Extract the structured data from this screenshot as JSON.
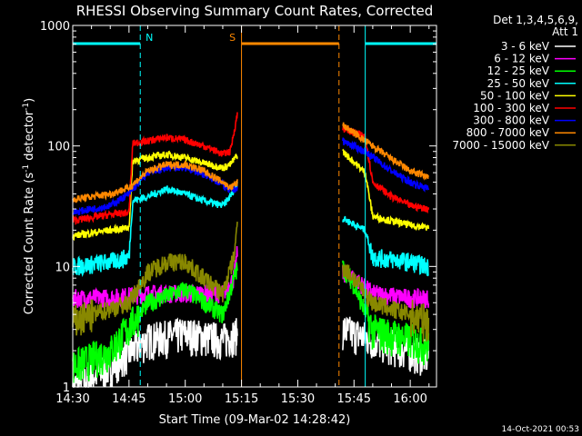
{
  "chart_data": {
    "type": "line",
    "title": "RHESSI Observing Summary Count Rates, Corrected",
    "xlabel": "Start Time (09-Mar-02 14:28:42)",
    "ylabel": "Corrected Count Rate (s",
    "ylabel_sup1": "-1",
    "ylabel_mid": " detector",
    "ylabel_sup2": "-1",
    "ylabel_end": ")",
    "yscale": "log",
    "ylim": [
      1,
      1000
    ],
    "xlim": [
      "14:30",
      "16:07"
    ],
    "xticks": [
      "14:30",
      "14:45",
      "15:00",
      "15:15",
      "15:30",
      "15:45",
      "16:00"
    ],
    "yticks": [
      "1",
      "10",
      "100",
      "1000"
    ],
    "timestamp": "14-Oct-2021 00:53",
    "legend": {
      "placement": "right",
      "header1": "Det 1,3,4,5,6,9,",
      "header2": "Att 1"
    },
    "flags": [
      {
        "label": "N",
        "color": "#00ffff",
        "start": "14:30",
        "end": "14:48",
        "end_line": true
      },
      {
        "label": "S",
        "color": "#ff8800",
        "start": "15:15",
        "end": "15:41",
        "end_line": true
      },
      {
        "label": "",
        "color": "#00ffff",
        "start": "15:48",
        "end": "16:07",
        "end_line": true
      }
    ],
    "gaps": [
      [
        "15:15",
        "15:42"
      ]
    ],
    "series": [
      {
        "name": "3 - 6 keV",
        "color": "#ffffff",
        "points": [
          [
            "14:30",
            1
          ],
          [
            "14:40",
            1.5
          ],
          [
            "14:50",
            2.5
          ],
          [
            "15:00",
            2.8
          ],
          [
            "15:10",
            2.5
          ],
          [
            "15:14",
            2.8
          ],
          [
            "15:42",
            3
          ],
          [
            "15:50",
            2.5
          ],
          [
            "16:00",
            2
          ],
          [
            "16:05",
            1.8
          ]
        ]
      },
      {
        "name": "6 - 12 keV",
        "color": "#ff00ff",
        "points": [
          [
            "14:30",
            5.5
          ],
          [
            "14:40",
            5.5
          ],
          [
            "14:50",
            6
          ],
          [
            "15:00",
            6
          ],
          [
            "15:10",
            6
          ],
          [
            "15:13",
            8
          ],
          [
            "15:14",
            14
          ],
          [
            "15:42",
            9
          ],
          [
            "15:45",
            8
          ],
          [
            "15:50",
            6
          ],
          [
            "16:00",
            5.5
          ],
          [
            "16:05",
            5.5
          ]
        ]
      },
      {
        "name": "12 - 25 keV",
        "color": "#00ff00",
        "points": [
          [
            "14:30",
            1.5
          ],
          [
            "14:40",
            2
          ],
          [
            "14:50",
            5
          ],
          [
            "15:00",
            6.5
          ],
          [
            "15:10",
            4
          ],
          [
            "15:14",
            10
          ],
          [
            "15:42",
            10
          ],
          [
            "15:45",
            7
          ],
          [
            "15:50",
            3
          ],
          [
            "16:00",
            2.5
          ],
          [
            "16:05",
            2.2
          ]
        ]
      },
      {
        "name": "25 - 50 keV",
        "color": "#00ffff",
        "points": [
          [
            "14:30",
            10
          ],
          [
            "14:40",
            11
          ],
          [
            "14:45",
            12
          ],
          [
            "14:46",
            35
          ],
          [
            "14:50",
            38
          ],
          [
            "14:55",
            44
          ],
          [
            "15:00",
            40
          ],
          [
            "15:05",
            35
          ],
          [
            "15:10",
            32
          ],
          [
            "15:12",
            38
          ],
          [
            "15:14",
            50
          ],
          [
            "15:42",
            25
          ],
          [
            "15:48",
            20
          ],
          [
            "15:50",
            12
          ],
          [
            "16:00",
            11
          ],
          [
            "16:05",
            10
          ]
        ]
      },
      {
        "name": "50 - 100 keV",
        "color": "#ffff00",
        "points": [
          [
            "14:30",
            18
          ],
          [
            "14:40",
            20
          ],
          [
            "14:45",
            21
          ],
          [
            "14:46",
            75
          ],
          [
            "14:50",
            80
          ],
          [
            "14:55",
            85
          ],
          [
            "15:00",
            80
          ],
          [
            "15:05",
            72
          ],
          [
            "15:10",
            66
          ],
          [
            "15:12",
            70
          ],
          [
            "15:14",
            85
          ],
          [
            "15:42",
            90
          ],
          [
            "15:48",
            60
          ],
          [
            "15:50",
            26
          ],
          [
            "16:00",
            22
          ],
          [
            "16:05",
            21
          ]
        ]
      },
      {
        "name": "100 - 300 keV",
        "color": "#ff0000",
        "points": [
          [
            "14:30",
            24
          ],
          [
            "14:40",
            27
          ],
          [
            "14:45",
            28
          ],
          [
            "14:46",
            105
          ],
          [
            "14:50",
            110
          ],
          [
            "14:55",
            118
          ],
          [
            "15:00",
            112
          ],
          [
            "15:05",
            100
          ],
          [
            "15:10",
            86
          ],
          [
            "15:12",
            90
          ],
          [
            "15:14",
            190
          ],
          [
            "15:42",
            140
          ],
          [
            "15:48",
            120
          ],
          [
            "15:50",
            50
          ],
          [
            "15:55",
            38
          ],
          [
            "16:00",
            32
          ],
          [
            "16:05",
            30
          ]
        ]
      },
      {
        "name": "300 - 800 keV",
        "color": "#0000ff",
        "points": [
          [
            "14:30",
            28
          ],
          [
            "14:40",
            32
          ],
          [
            "14:45",
            40
          ],
          [
            "14:50",
            60
          ],
          [
            "14:55",
            66
          ],
          [
            "15:00",
            66
          ],
          [
            "15:05",
            58
          ],
          [
            "15:10",
            48
          ],
          [
            "15:12",
            42
          ],
          [
            "15:14",
            45
          ],
          [
            "15:42",
            110
          ],
          [
            "15:48",
            90
          ],
          [
            "15:55",
            62
          ],
          [
            "16:00",
            50
          ],
          [
            "16:05",
            44
          ]
        ]
      },
      {
        "name": "800 - 7000 keV",
        "color": "#ff8800",
        "points": [
          [
            "14:30",
            36
          ],
          [
            "14:40",
            40
          ],
          [
            "14:45",
            45
          ],
          [
            "14:50",
            62
          ],
          [
            "14:55",
            70
          ],
          [
            "15:00",
            70
          ],
          [
            "15:05",
            62
          ],
          [
            "15:10",
            50
          ],
          [
            "15:12",
            45
          ],
          [
            "15:14",
            50
          ],
          [
            "15:42",
            150
          ],
          [
            "15:48",
            110
          ],
          [
            "15:55",
            78
          ],
          [
            "16:00",
            62
          ],
          [
            "16:05",
            55
          ]
        ]
      },
      {
        "name": "7000 - 15000 keV",
        "color": "#888800",
        "points": [
          [
            "14:30",
            3.5
          ],
          [
            "14:40",
            4.5
          ],
          [
            "14:45",
            5
          ],
          [
            "14:50",
            9
          ],
          [
            "14:55",
            11
          ],
          [
            "15:00",
            11
          ],
          [
            "15:05",
            8
          ],
          [
            "15:10",
            6
          ],
          [
            "15:13",
            12
          ],
          [
            "15:14",
            25
          ],
          [
            "15:42",
            10
          ],
          [
            "15:45",
            8
          ],
          [
            "15:50",
            5
          ],
          [
            "16:00",
            4
          ],
          [
            "16:05",
            3.5
          ]
        ]
      }
    ]
  }
}
